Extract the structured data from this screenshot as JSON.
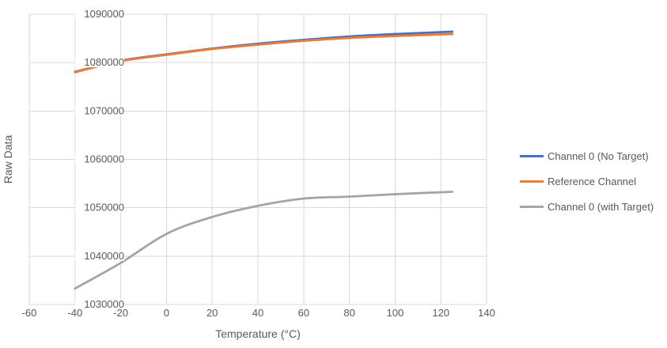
{
  "chart_data": {
    "type": "line",
    "title": "",
    "xlabel": "Temperature (°C)",
    "ylabel": "Raw Data",
    "xlim": [
      -60,
      140
    ],
    "xstep": 20,
    "ylim": [
      1030000,
      1090000
    ],
    "ystep": 10000,
    "grid": true,
    "legend_position": "right",
    "x": [
      -40,
      -20,
      0,
      20,
      40,
      60,
      80,
      100,
      125
    ],
    "series": [
      {
        "name": "Channel 0 (No Target)",
        "color": "#4472C4",
        "values": [
          1078100,
          1080400,
          1081700,
          1082900,
          1083900,
          1084700,
          1085400,
          1085900,
          1086400
        ]
      },
      {
        "name": "Reference Channel",
        "color": "#ED7D31",
        "values": [
          1078000,
          1080300,
          1081600,
          1082800,
          1083700,
          1084500,
          1085100,
          1085500,
          1085900
        ]
      },
      {
        "name": "Channel 0 (with Target)",
        "color": "#A5A5A5",
        "values": [
          1033300,
          1038600,
          1044600,
          1048100,
          1050400,
          1051900,
          1052300,
          1052800,
          1053300
        ]
      }
    ]
  },
  "colors": {
    "background": "#FFFFFF",
    "grid": "#D9D9D9",
    "axis_text": "#595959"
  }
}
